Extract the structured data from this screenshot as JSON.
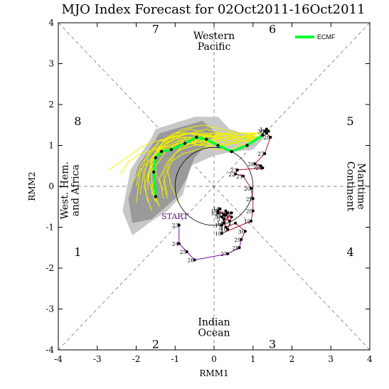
{
  "chart_data": {
    "type": "scatter",
    "title": "MJO Index Forecast for 02Oct2011-16Oct2011",
    "xlabel": "RMM1",
    "ylabel": "RMM2",
    "xlim": [
      -4,
      4
    ],
    "ylim": [
      -4,
      4
    ],
    "x_ticks": [
      "-4",
      "-3",
      "-2",
      "-1",
      "0",
      "1",
      "2",
      "3",
      "4"
    ],
    "y_ticks": [
      "-4",
      "-3",
      "-2",
      "-1",
      "0",
      "1",
      "2",
      "3",
      "4"
    ],
    "grid": false,
    "legend": {
      "placement": "top-right",
      "entries": [
        {
          "name": "ECMF",
          "color": "#00ff33"
        }
      ]
    },
    "phase_numbers": [
      {
        "label": "1",
        "x": -3.5,
        "y": -1.6
      },
      {
        "label": "2",
        "x": -1.5,
        "y": -3.85
      },
      {
        "label": "3",
        "x": 1.5,
        "y": -3.85
      },
      {
        "label": "4",
        "x": 3.5,
        "y": -1.6
      },
      {
        "label": "5",
        "x": 3.5,
        "y": 1.6
      },
      {
        "label": "6",
        "x": 1.5,
        "y": 3.85
      },
      {
        "label": "7",
        "x": -1.5,
        "y": 3.85
      },
      {
        "label": "8",
        "x": -3.5,
        "y": 1.6
      }
    ],
    "region_labels": {
      "western_pacific": [
        "Western",
        "Pacific"
      ],
      "indian_ocean": [
        "Indian",
        "Ocean"
      ],
      "maritime_continent": [
        "Maritime",
        "Continent"
      ],
      "west_hem_africa": [
        "West. Hem.",
        "and Africa"
      ]
    },
    "start_label": "START",
    "observed": {
      "color_early": "#7b0aa8",
      "color_late": "#b0102a",
      "points": [
        {
          "label": "23",
          "x": -0.9,
          "y": -0.95
        },
        {
          "label": "24",
          "x": -0.9,
          "y": -1.4
        },
        {
          "label": "25",
          "x": -0.7,
          "y": -1.6
        },
        {
          "label": "26",
          "x": -0.5,
          "y": -1.8
        },
        {
          "label": "27",
          "x": 0.35,
          "y": -1.65
        },
        {
          "label": "28",
          "x": 0.65,
          "y": -1.5
        },
        {
          "label": "29",
          "x": 0.7,
          "y": -1.3
        },
        {
          "label": "30",
          "x": 0.8,
          "y": -1.1
        },
        {
          "label": "1",
          "x": 0.55,
          "y": -0.9
        },
        {
          "label": "2",
          "x": 0.3,
          "y": -1.0
        },
        {
          "label": "3",
          "x": 0.25,
          "y": -0.8
        },
        {
          "label": "4",
          "x": 0.35,
          "y": -0.65
        },
        {
          "label": "5",
          "x": 0.2,
          "y": -0.75
        },
        {
          "label": "6",
          "x": 0.4,
          "y": -0.85
        },
        {
          "label": "7",
          "x": 0.3,
          "y": -0.6
        },
        {
          "label": "8",
          "x": 0.25,
          "y": -0.7
        },
        {
          "label": "9",
          "x": 0.45,
          "y": -0.75
        },
        {
          "label": "10",
          "x": 0.35,
          "y": -1.05
        },
        {
          "label": "11",
          "x": 0.25,
          "y": -0.9
        },
        {
          "label": "12",
          "x": 0.45,
          "y": -0.65
        },
        {
          "label": "13",
          "x": 0.1,
          "y": -0.65
        },
        {
          "label": "14",
          "x": 0.15,
          "y": -0.55
        },
        {
          "label": "15",
          "x": 0.1,
          "y": -0.6
        },
        {
          "label": "16",
          "x": 0.3,
          "y": -0.7
        },
        {
          "label": "17",
          "x": 0.2,
          "y": -0.95
        },
        {
          "label": "18",
          "x": 0.2,
          "y": -1.15
        },
        {
          "label": "19",
          "x": 0.95,
          "y": -0.85
        },
        {
          "label": "20",
          "x": 1.0,
          "y": -0.6
        },
        {
          "label": "29",
          "x": 1.0,
          "y": -0.3
        },
        {
          "label": "20",
          "x": 0.95,
          "y": -0.05
        },
        {
          "label": "21",
          "x": 0.75,
          "y": 0.25
        },
        {
          "label": "22",
          "x": 0.55,
          "y": 0.3
        },
        {
          "label": "23",
          "x": 0.6,
          "y": 0.4
        },
        {
          "label": "24",
          "x": 1.25,
          "y": 0.45
        },
        {
          "label": "25",
          "x": 1.2,
          "y": 0.5
        },
        {
          "label": "26",
          "x": 1.05,
          "y": 0.55
        },
        {
          "label": "27",
          "x": 1.3,
          "y": 0.8
        },
        {
          "label": "28",
          "x": 1.45,
          "y": 1.2
        },
        {
          "label": "29",
          "x": 1.35,
          "y": 1.3
        },
        {
          "label": "30",
          "x": 1.3,
          "y": 1.35
        },
        {
          "label": "31",
          "x": 1.4,
          "y": 1.35
        },
        {
          "label": "1",
          "x": 1.35,
          "y": 1.4
        }
      ]
    },
    "ensemble_mean": {
      "name": "ECMF",
      "color": "#00ff33",
      "x": [
        1.25,
        0.85,
        0.45,
        0.1,
        -0.2,
        -0.45,
        -0.75,
        -1.1,
        -1.35,
        -1.5,
        -1.55,
        -1.5
      ],
      "y": [
        1.25,
        1.0,
        0.85,
        1.0,
        1.15,
        1.2,
        1.05,
        0.9,
        0.85,
        0.7,
        0.35,
        -0.25
      ]
    },
    "spread": {
      "fill_dark": "#9a9a9a",
      "fill_light": "#c8c8c8",
      "light_polygon": {
        "x": [
          -1.5,
          -0.5,
          0.1,
          0.4,
          0.9,
          1.3,
          1.0,
          0.5,
          0.0,
          -0.6,
          -0.8,
          -1.2,
          -1.6,
          -2.1,
          -2.35,
          -2.15,
          -1.6
        ],
        "y": [
          1.4,
          1.7,
          1.7,
          1.4,
          1.25,
          1.2,
          0.9,
          0.85,
          0.75,
          0.5,
          -0.2,
          -0.6,
          -0.85,
          -1.2,
          -0.6,
          0.4,
          1.2
        ]
      },
      "dark_polygon": {
        "x": [
          -1.4,
          -0.3,
          0.05,
          -0.2,
          -0.5,
          -0.7,
          -1.0,
          -1.6,
          -2.1,
          -2.2,
          -1.95,
          -1.6
        ],
        "y": [
          1.3,
          1.6,
          1.3,
          1.0,
          0.7,
          0.2,
          -0.3,
          -0.8,
          -0.9,
          -0.3,
          0.5,
          1.0
        ]
      }
    },
    "members": {
      "color": "#f0f000",
      "tracks": [
        {
          "x": [
            1.1,
            0.7,
            0.2,
            -0.3,
            -0.7,
            -1.1,
            -1.4,
            -1.6,
            -1.7
          ],
          "y": [
            1.3,
            1.1,
            1.0,
            1.2,
            1.3,
            1.2,
            1.0,
            0.6,
            0.1
          ]
        },
        {
          "x": [
            1.2,
            0.8,
            0.3,
            -0.2,
            -0.6,
            -1.0,
            -1.3,
            -1.5,
            -1.6
          ],
          "y": [
            1.2,
            1.0,
            1.1,
            1.3,
            1.4,
            1.3,
            1.1,
            0.8,
            0.3
          ]
        },
        {
          "x": [
            1.0,
            0.6,
            0.1,
            -0.4,
            -0.8,
            -1.2,
            -1.5,
            -1.8,
            -1.9
          ],
          "y": [
            1.2,
            1.2,
            1.1,
            1.0,
            1.2,
            1.1,
            0.8,
            0.4,
            -0.2
          ]
        },
        {
          "x": [
            1.1,
            0.7,
            0.3,
            -0.1,
            -0.5,
            -0.9,
            -1.2,
            -1.4,
            -1.3
          ],
          "y": [
            1.3,
            1.3,
            1.2,
            1.1,
            1.0,
            0.9,
            0.6,
            0.2,
            -0.3
          ]
        },
        {
          "x": [
            1.2,
            0.9,
            0.4,
            0.0,
            -0.4,
            -0.8,
            -1.1,
            -1.3,
            -1.2
          ],
          "y": [
            1.2,
            1.1,
            0.9,
            0.9,
            1.1,
            1.0,
            0.7,
            0.3,
            -0.2
          ]
        },
        {
          "x": [
            1.0,
            0.6,
            0.2,
            -0.2,
            -0.6,
            -1.0,
            -1.3,
            -1.6,
            -1.9,
            -2.1
          ],
          "y": [
            1.3,
            1.2,
            1.3,
            1.4,
            1.3,
            1.2,
            1.0,
            0.7,
            0.4,
            0.1
          ]
        },
        {
          "x": [
            1.1,
            0.7,
            0.3,
            -0.2,
            -0.7,
            -1.2,
            -1.6,
            -1.9,
            -2.0
          ],
          "y": [
            1.3,
            1.2,
            1.2,
            1.1,
            1.2,
            1.0,
            0.9,
            0.5,
            0.0
          ]
        },
        {
          "x": [
            1.1,
            0.8,
            0.4,
            0.0,
            -0.3,
            -0.7,
            -1.0,
            -1.2,
            -1.1,
            -0.9
          ],
          "y": [
            1.3,
            1.2,
            1.2,
            1.3,
            1.2,
            1.0,
            0.8,
            0.4,
            0.0,
            -0.4
          ]
        },
        {
          "x": [
            1.2,
            0.8,
            0.4,
            0.0,
            -0.5,
            -1.0,
            -1.4,
            -1.7,
            -1.8,
            -1.7
          ],
          "y": [
            1.2,
            1.1,
            1.2,
            1.2,
            1.3,
            1.3,
            1.1,
            0.7,
            0.2,
            -0.4
          ]
        },
        {
          "x": [
            1.1,
            0.7,
            0.2,
            -0.3,
            -0.8,
            -1.3,
            -1.6,
            -1.8,
            -1.6
          ],
          "y": [
            1.2,
            1.1,
            1.0,
            1.1,
            1.0,
            0.9,
            0.6,
            0.0,
            -0.6
          ]
        },
        {
          "x": [
            1.0,
            0.6,
            0.2,
            -0.3,
            -0.8,
            -1.2,
            -1.5,
            -1.5,
            -1.3
          ],
          "y": [
            1.3,
            1.3,
            1.4,
            1.5,
            1.4,
            1.2,
            0.8,
            0.3,
            -0.1
          ]
        },
        {
          "x": [
            1.1,
            0.7,
            0.3,
            -0.1,
            -0.6,
            -1.1,
            -1.5,
            -1.8,
            -2.1,
            -2.4,
            -2.7
          ],
          "y": [
            1.3,
            1.2,
            1.3,
            1.2,
            1.3,
            1.2,
            1.1,
            1.0,
            0.8,
            0.6,
            0.4
          ]
        },
        {
          "x": [
            1.2,
            0.8,
            0.4,
            0.0,
            -0.4,
            -0.8,
            -1.2,
            -1.5,
            -1.6,
            -1.4
          ],
          "y": [
            1.2,
            1.2,
            1.1,
            1.0,
            1.0,
            1.1,
            0.9,
            0.5,
            -0.1,
            -0.5
          ]
        },
        {
          "x": [
            1.1,
            0.7,
            0.3,
            -0.2,
            -0.6,
            -1.0,
            -1.4,
            -1.7,
            -1.9,
            -2.0
          ],
          "y": [
            1.3,
            1.1,
            1.0,
            1.1,
            1.3,
            1.2,
            1.1,
            0.8,
            0.3,
            -0.4
          ]
        },
        {
          "x": [
            1.1,
            0.8,
            0.4,
            0.0,
            -0.4,
            -0.9,
            -1.3,
            -1.6,
            -1.6,
            -1.4
          ],
          "y": [
            1.2,
            1.3,
            1.3,
            1.2,
            1.2,
            1.2,
            1.0,
            0.5,
            0.0,
            -0.5
          ]
        },
        {
          "x": [
            1.0,
            0.6,
            0.1,
            -0.4,
            -0.9,
            -1.3,
            -1.6,
            -1.7,
            -1.5
          ],
          "y": [
            1.2,
            1.2,
            1.2,
            1.3,
            1.3,
            1.1,
            0.7,
            0.2,
            -0.4
          ]
        },
        {
          "x": [
            1.2,
            0.8,
            0.4,
            0.0,
            -0.4,
            -0.8,
            -1.1,
            -1.3,
            -1.2
          ],
          "y": [
            1.3,
            1.2,
            1.1,
            1.0,
            0.9,
            0.8,
            0.6,
            0.1,
            -0.3
          ]
        },
        {
          "x": [
            1.1,
            0.7,
            0.3,
            -0.1,
            -0.5,
            -0.9,
            -1.2,
            -1.5,
            -1.7,
            -1.7
          ],
          "y": [
            1.2,
            1.2,
            1.3,
            1.3,
            1.2,
            1.1,
            0.9,
            0.7,
            0.3,
            -0.1
          ]
        },
        {
          "x": [
            1.1,
            0.7,
            0.3,
            -0.2,
            -0.7,
            -1.1,
            -1.4,
            -1.6,
            -1.6
          ],
          "y": [
            1.3,
            1.3,
            1.3,
            1.2,
            1.1,
            1.0,
            0.9,
            0.5,
            -0.2
          ]
        },
        {
          "x": [
            1.0,
            0.6,
            0.2,
            -0.3,
            -0.7,
            -1.1,
            -1.5,
            -1.9,
            -2.2,
            -2.4
          ],
          "y": [
            1.2,
            1.1,
            1.2,
            1.1,
            1.1,
            1.0,
            0.9,
            0.8,
            0.6,
            0.3
          ]
        }
      ]
    }
  }
}
